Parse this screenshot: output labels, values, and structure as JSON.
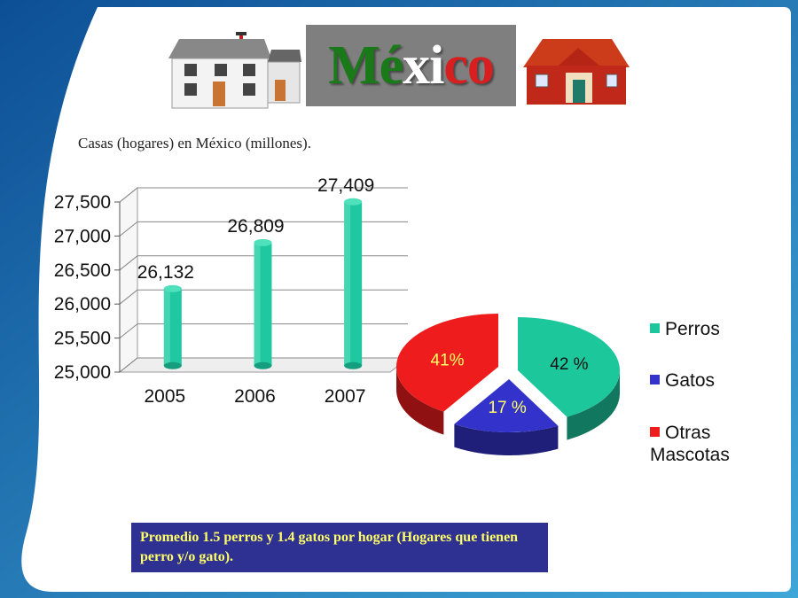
{
  "slide": {
    "title": "México",
    "title_colors": [
      "#1a7a1a",
      "#1a7a1a",
      "#ffffff",
      "#ffffff",
      "#d81e1e",
      "#d81e1e"
    ],
    "subtitle": "Casas (hogares) en México (millones).",
    "note": "Promedio 1.5 perros y 1.4 gatos por hogar (Hogares que tienen perro y/o gato).",
    "background_color": "#1f6fb3",
    "panel_color": "#ffffff"
  },
  "chart_data": [
    {
      "type": "bar",
      "categories": [
        "2005",
        "2006",
        "2007"
      ],
      "values": [
        26132,
        26809,
        27409
      ],
      "value_labels": [
        "26,132",
        "26,809",
        "27,409"
      ],
      "ylim": [
        25000,
        27500
      ],
      "yticks": [
        "25,000",
        "25,500",
        "26,000",
        "26,500",
        "27,000",
        "27,500"
      ],
      "ytick_values": [
        25000,
        25500,
        26000,
        26500,
        27000,
        27500
      ],
      "grid": true,
      "bar_color": "#1fc8a0",
      "title": "",
      "xlabel": "",
      "ylabel": ""
    },
    {
      "type": "pie",
      "labels": [
        "Perros",
        "Gatos",
        "Otras Mascotas"
      ],
      "values": [
        42,
        17,
        41
      ],
      "value_labels": [
        "42 %",
        "17 %",
        "41%"
      ],
      "colors": [
        "#1dc79c",
        "#3333cc",
        "#ee1c1c"
      ],
      "label_colors": [
        "#111111",
        "#ffff66",
        "#ffff66"
      ],
      "legend_position": "right"
    }
  ]
}
